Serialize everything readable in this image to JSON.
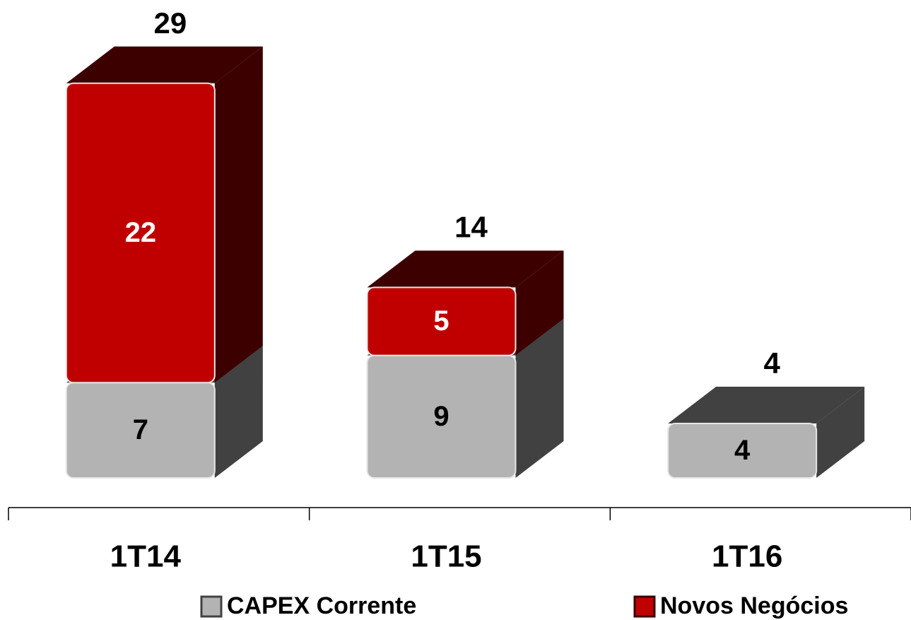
{
  "chart_data": {
    "type": "bar",
    "stacked": true,
    "categories": [
      "1T14",
      "1T15",
      "1T16"
    ],
    "series": [
      {
        "name": "CAPEX Corrente",
        "color": "#b3b3b3",
        "side_color": "#414141",
        "label_color": "#000000",
        "values": [
          7,
          9,
          4
        ]
      },
      {
        "name": "Novos Negócios",
        "color": "#c00000",
        "side_color": "#3c0000",
        "label_color": "#ffffff",
        "values": [
          22,
          5,
          null
        ]
      }
    ],
    "totals": [
      29,
      14,
      4
    ]
  }
}
